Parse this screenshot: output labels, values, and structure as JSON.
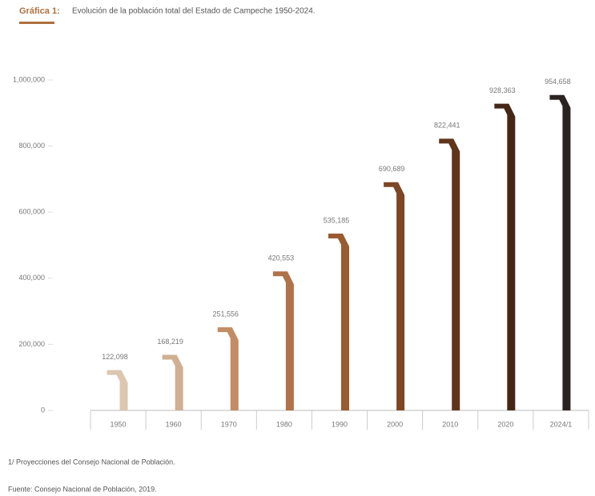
{
  "chart_data": {
    "type": "bar",
    "title_lead": "Gráfica 1:",
    "title": "Evolución de la población total del Estado de Campeche 1950-2024.",
    "categories": [
      "1950",
      "1960",
      "1970",
      "1980",
      "1990",
      "2000",
      "2010",
      "2020",
      "2024/1"
    ],
    "values": [
      122098,
      168219,
      251556,
      420553,
      535185,
      690689,
      822441,
      928363,
      954658
    ],
    "value_labels": [
      "122,098",
      "168,219",
      "251,556",
      "420,553",
      "535,185",
      "690,689",
      "822,441",
      "928,363",
      "954,658"
    ],
    "colors": [
      "#dcc6b0",
      "#d0b093",
      "#c28c64",
      "#b07248",
      "#9a5b31",
      "#7d4624",
      "#5f351b",
      "#462716",
      "#2b2321"
    ],
    "ylim": [
      0,
      1000000
    ],
    "yticks": [
      0,
      {
        "value": 200000,
        "label": "200,000"
      },
      {
        "value": 400000,
        "label": "400,000"
      },
      {
        "value": 600000,
        "label": "600,000"
      },
      {
        "value": 800000,
        "label": "800,000"
      },
      {
        "value": 1000000,
        "label": "1,000,000"
      }
    ],
    "footnote": "1/ Proyecciones del Consejo Nacional de Población.",
    "source": "Fuente: Consejo Nacional de Población, 2019."
  }
}
